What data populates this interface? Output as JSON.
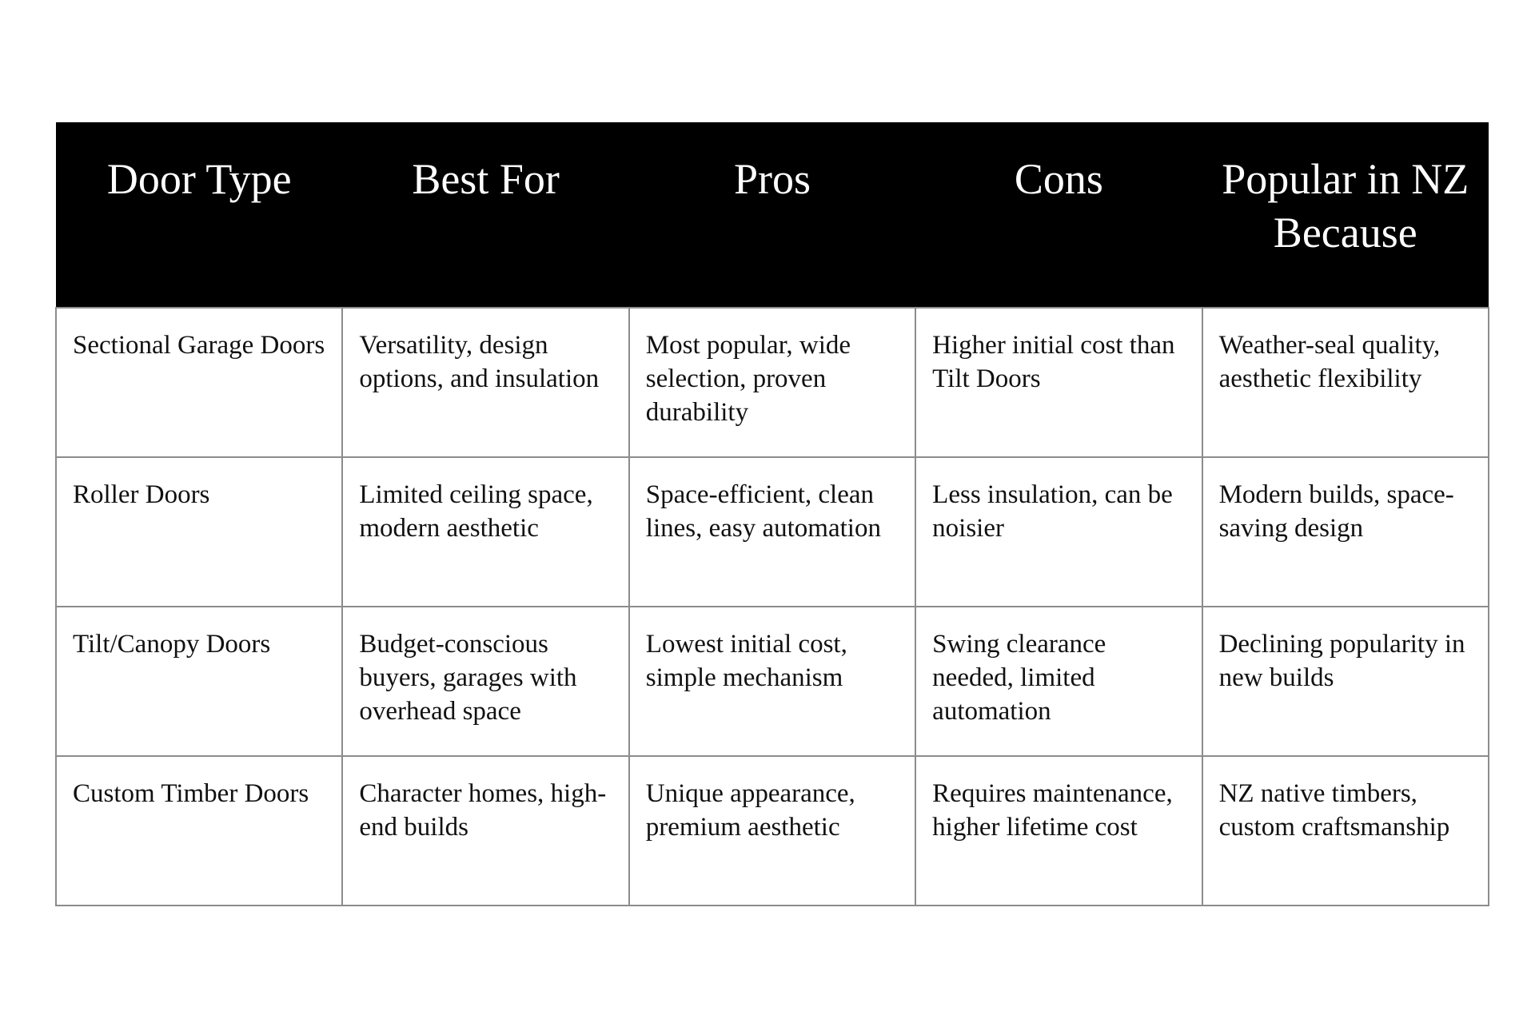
{
  "table": {
    "headers": [
      "Door Type",
      "Best For",
      "Pros",
      "Cons",
      "Popular in NZ Because"
    ],
    "rows": [
      [
        "Sectional Garage Doors",
        "Versatility, design options, and insulation",
        "Most popular, wide selection, proven durability",
        "Higher initial cost than Tilt Doors",
        "Weather-seal quality, aesthetic flexibility"
      ],
      [
        "Roller Doors",
        "Limited ceiling space, modern aesthetic",
        "Space-efficient, clean lines, easy automation",
        "Less insulation, can be noisier",
        "Modern builds, space-saving design"
      ],
      [
        "Tilt/Canopy Doors",
        "Budget-conscious buyers, garages with overhead space",
        "Lowest initial cost, simple mechanism",
        "Swing clearance needed, limited automation",
        "Declining popularity in new builds"
      ],
      [
        "Custom Timber Doors",
        "Character homes, high-end builds",
        "Unique appearance, premium aesthetic",
        "Requires maintenance, higher lifetime cost",
        "NZ native timbers, custom craftsmanship"
      ]
    ]
  }
}
